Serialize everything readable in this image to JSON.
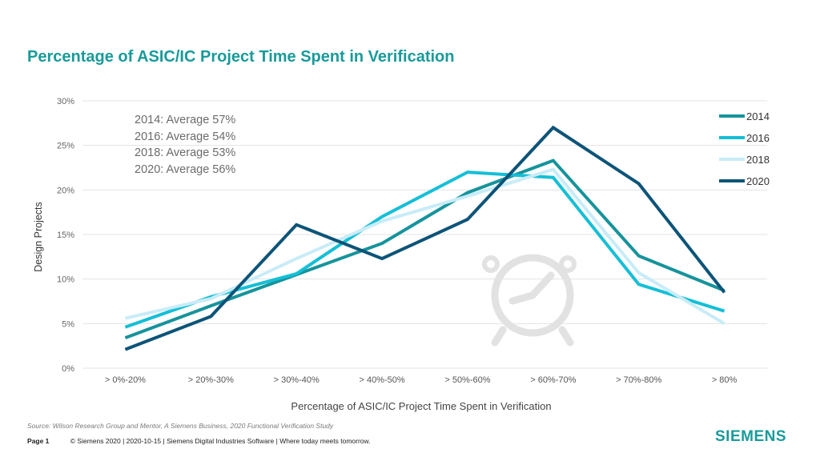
{
  "page": {
    "title": "Percentage of ASIC/IC Project Time Spent in Verification",
    "averages": [
      "2014: Average 57%",
      "2016: Average 54%",
      "2018: Average 53%",
      "2020: Average 56%"
    ],
    "source": "Source:  Wilson Research Group and Mentor,  A Siemens Business, 2020 Functional Verification Study",
    "footer": {
      "page_label": "Page 1",
      "text": "© Siemens 2020 | 2020-10-15 | Siemens Digital Industries Software | Where today meets tomorrow."
    },
    "logo_text": "SIEMENS",
    "background_icon": "alarm-clock-icon"
  },
  "chart_data": {
    "type": "line",
    "title": "Percentage of ASIC/IC Project Time Spent in Verification",
    "xlabel": "Percentage of ASIC/IC Project Time Spent in Verification",
    "ylabel": "Design Projects",
    "categories": [
      "> 0%-20%",
      "> 20%-30%",
      "> 30%-40%",
      "> 40%-50%",
      "> 50%-60%",
      "> 60%-70%",
      "> 70%-80%",
      "> 80%"
    ],
    "ylim": [
      0,
      30
    ],
    "yticks": [
      0,
      5,
      10,
      15,
      20,
      25,
      30
    ],
    "ytick_labels": [
      "0%",
      "5%",
      "10%",
      "15%",
      "20%",
      "25%",
      "30%"
    ],
    "grid": true,
    "legend_position": "right",
    "series": [
      {
        "name": "2014",
        "color": "#16939b",
        "values": [
          3.4,
          7.0,
          10.5,
          14.0,
          19.7,
          23.3,
          12.6,
          8.7
        ]
      },
      {
        "name": "2016",
        "color": "#14bfd6",
        "values": [
          4.6,
          8.0,
          10.6,
          17.0,
          22.0,
          21.4,
          9.4,
          6.4
        ]
      },
      {
        "name": "2018",
        "color": "#c8ecf8",
        "values": [
          5.6,
          7.8,
          12.3,
          16.5,
          19.3,
          22.3,
          10.7,
          5.0
        ]
      },
      {
        "name": "2020",
        "color": "#0d5478",
        "values": [
          2.1,
          5.8,
          16.1,
          12.3,
          16.7,
          27.0,
          20.7,
          8.5
        ]
      }
    ]
  }
}
